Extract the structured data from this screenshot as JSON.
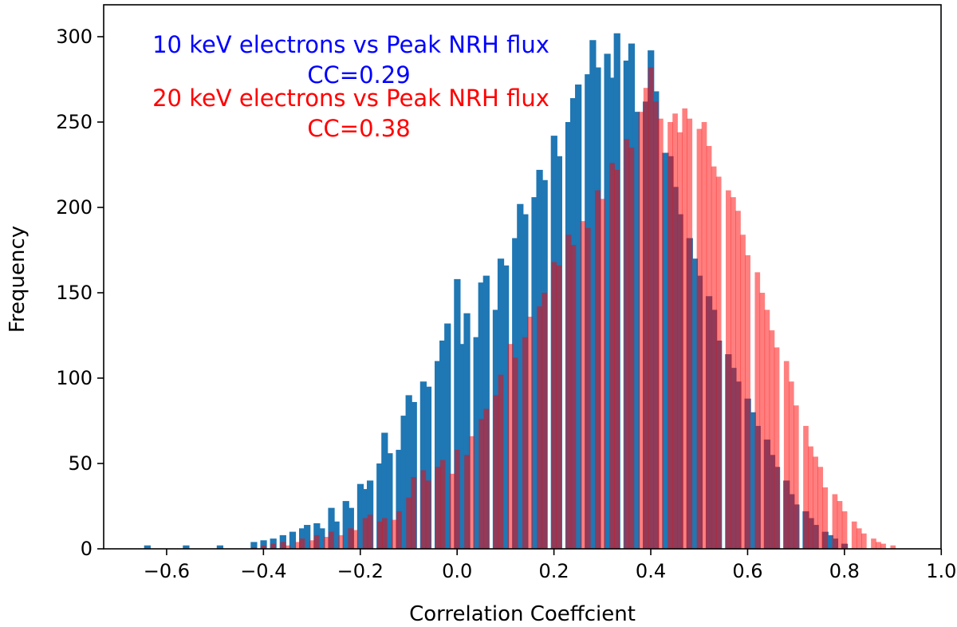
{
  "chart_data": {
    "type": "bar",
    "title": "",
    "xlabel": "Correlation Coeffcient",
    "ylabel": "Frequency",
    "xlim": [
      -0.73,
      1.0
    ],
    "ylim": [
      0,
      320
    ],
    "x_ticks": [
      {
        "value": -0.6,
        "label": "−0.6"
      },
      {
        "value": -0.4,
        "label": "−0.4"
      },
      {
        "value": -0.2,
        "label": "−0.2"
      },
      {
        "value": 0.0,
        "label": "0.0"
      },
      {
        "value": 0.2,
        "label": "0.2"
      },
      {
        "value": 0.4,
        "label": "0.4"
      },
      {
        "value": 0.6,
        "label": "0.6"
      },
      {
        "value": 0.8,
        "label": "0.8"
      },
      {
        "value": 1.0,
        "label": "1.0"
      }
    ],
    "y_ticks": [
      {
        "value": 0,
        "label": "0"
      },
      {
        "value": 50,
        "label": "50"
      },
      {
        "value": 100,
        "label": "100"
      },
      {
        "value": 150,
        "label": "150"
      },
      {
        "value": 200,
        "label": "200"
      },
      {
        "value": 250,
        "label": "250"
      },
      {
        "value": 300,
        "label": "300"
      }
    ],
    "grid": false,
    "series": [
      {
        "id": "blue",
        "color": "#1f77b4",
        "opacity": 1,
        "bin_width": 0.0129,
        "bins": [
          [
            -0.64,
            2
          ],
          [
            -0.56,
            2
          ],
          [
            -0.49,
            2
          ],
          [
            -0.42,
            4
          ],
          [
            -0.4,
            5
          ],
          [
            -0.38,
            6
          ],
          [
            -0.36,
            8
          ],
          [
            -0.34,
            10
          ],
          [
            -0.32,
            12
          ],
          [
            -0.31,
            14
          ],
          [
            -0.29,
            15
          ],
          [
            -0.28,
            12
          ],
          [
            -0.26,
            24
          ],
          [
            -0.25,
            16
          ],
          [
            -0.23,
            28
          ],
          [
            -0.22,
            24
          ],
          [
            -0.2,
            38
          ],
          [
            -0.19,
            35
          ],
          [
            -0.18,
            40
          ],
          [
            -0.16,
            50
          ],
          [
            -0.15,
            68
          ],
          [
            -0.14,
            56
          ],
          [
            -0.12,
            58
          ],
          [
            -0.11,
            78
          ],
          [
            -0.1,
            90
          ],
          [
            -0.09,
            86
          ],
          [
            -0.07,
            98
          ],
          [
            -0.06,
            95
          ],
          [
            -0.04,
            110
          ],
          [
            -0.03,
            122
          ],
          [
            -0.02,
            132
          ],
          [
            0.0,
            158
          ],
          [
            0.01,
            120
          ],
          [
            0.02,
            138
          ],
          [
            0.04,
            124
          ],
          [
            0.05,
            156
          ],
          [
            0.06,
            160
          ],
          [
            0.08,
            140
          ],
          [
            0.09,
            170
          ],
          [
            0.1,
            166
          ],
          [
            0.12,
            182
          ],
          [
            0.13,
            202
          ],
          [
            0.14,
            196
          ],
          [
            0.16,
            206
          ],
          [
            0.17,
            222
          ],
          [
            0.18,
            216
          ],
          [
            0.2,
            242
          ],
          [
            0.21,
            230
          ],
          [
            0.23,
            250
          ],
          [
            0.24,
            264
          ],
          [
            0.25,
            272
          ],
          [
            0.27,
            278
          ],
          [
            0.28,
            298
          ],
          [
            0.29,
            282
          ],
          [
            0.31,
            290
          ],
          [
            0.32,
            276
          ],
          [
            0.33,
            302
          ],
          [
            0.35,
            286
          ],
          [
            0.36,
            296
          ],
          [
            0.37,
            256
          ],
          [
            0.39,
            262
          ],
          [
            0.4,
            292
          ],
          [
            0.41,
            268
          ],
          [
            0.43,
            232
          ],
          [
            0.44,
            230
          ],
          [
            0.45,
            212
          ],
          [
            0.46,
            196
          ],
          [
            0.48,
            182
          ],
          [
            0.49,
            170
          ],
          [
            0.5,
            160
          ],
          [
            0.52,
            148
          ],
          [
            0.53,
            140
          ],
          [
            0.54,
            122
          ],
          [
            0.56,
            114
          ],
          [
            0.57,
            106
          ],
          [
            0.58,
            98
          ],
          [
            0.6,
            88
          ],
          [
            0.61,
            80
          ],
          [
            0.62,
            72
          ],
          [
            0.64,
            64
          ],
          [
            0.65,
            55
          ],
          [
            0.66,
            48
          ],
          [
            0.68,
            40
          ],
          [
            0.69,
            32
          ],
          [
            0.7,
            26
          ],
          [
            0.72,
            22
          ],
          [
            0.73,
            18
          ],
          [
            0.74,
            14
          ],
          [
            0.76,
            10
          ],
          [
            0.77,
            8
          ],
          [
            0.78,
            6
          ],
          [
            0.8,
            3
          ]
        ]
      },
      {
        "id": "red",
        "color": "#ff0000",
        "opacity": 0.5,
        "bin_width": 0.0103,
        "bins": [
          [
            -0.42,
            1
          ],
          [
            -0.4,
            2
          ],
          [
            -0.38,
            3
          ],
          [
            -0.36,
            4
          ],
          [
            -0.35,
            2
          ],
          [
            -0.33,
            4
          ],
          [
            -0.32,
            6
          ],
          [
            -0.3,
            5
          ],
          [
            -0.29,
            8
          ],
          [
            -0.27,
            7
          ],
          [
            -0.26,
            10
          ],
          [
            -0.24,
            8
          ],
          [
            -0.22,
            12
          ],
          [
            -0.21,
            11
          ],
          [
            -0.19,
            18
          ],
          [
            -0.18,
            20
          ],
          [
            -0.16,
            16
          ],
          [
            -0.15,
            18
          ],
          [
            -0.13,
            17
          ],
          [
            -0.12,
            22
          ],
          [
            -0.1,
            30
          ],
          [
            -0.09,
            42
          ],
          [
            -0.07,
            46
          ],
          [
            -0.06,
            40
          ],
          [
            -0.04,
            48
          ],
          [
            -0.03,
            52
          ],
          [
            -0.01,
            44
          ],
          [
            0.0,
            58
          ],
          [
            0.02,
            55
          ],
          [
            0.03,
            66
          ],
          [
            0.05,
            76
          ],
          [
            0.06,
            82
          ],
          [
            0.08,
            90
          ],
          [
            0.09,
            102
          ],
          [
            0.11,
            120
          ],
          [
            0.12,
            112
          ],
          [
            0.14,
            124
          ],
          [
            0.15,
            136
          ],
          [
            0.17,
            142
          ],
          [
            0.18,
            150
          ],
          [
            0.2,
            168
          ],
          [
            0.21,
            166
          ],
          [
            0.23,
            184
          ],
          [
            0.24,
            178
          ],
          [
            0.26,
            192
          ],
          [
            0.27,
            188
          ],
          [
            0.29,
            210
          ],
          [
            0.3,
            205
          ],
          [
            0.32,
            226
          ],
          [
            0.33,
            222
          ],
          [
            0.35,
            240
          ],
          [
            0.36,
            235
          ],
          [
            0.38,
            256
          ],
          [
            0.39,
            270
          ],
          [
            0.4,
            282
          ],
          [
            0.41,
            262
          ],
          [
            0.42,
            252
          ],
          [
            0.44,
            250
          ],
          [
            0.45,
            255
          ],
          [
            0.46,
            244
          ],
          [
            0.47,
            258
          ],
          [
            0.48,
            252
          ],
          [
            0.5,
            246
          ],
          [
            0.51,
            250
          ],
          [
            0.52,
            236
          ],
          [
            0.53,
            224
          ],
          [
            0.54,
            218
          ],
          [
            0.56,
            210
          ],
          [
            0.57,
            206
          ],
          [
            0.58,
            198
          ],
          [
            0.59,
            184
          ],
          [
            0.6,
            172
          ],
          [
            0.62,
            162
          ],
          [
            0.63,
            150
          ],
          [
            0.64,
            140
          ],
          [
            0.65,
            128
          ],
          [
            0.66,
            118
          ],
          [
            0.68,
            110
          ],
          [
            0.69,
            98
          ],
          [
            0.7,
            84
          ],
          [
            0.72,
            72
          ],
          [
            0.73,
            60
          ],
          [
            0.74,
            54
          ],
          [
            0.75,
            48
          ],
          [
            0.76,
            36
          ],
          [
            0.78,
            32
          ],
          [
            0.79,
            28
          ],
          [
            0.8,
            22
          ],
          [
            0.82,
            16
          ],
          [
            0.83,
            12
          ],
          [
            0.84,
            9
          ],
          [
            0.86,
            6
          ],
          [
            0.87,
            4
          ],
          [
            0.88,
            3
          ],
          [
            0.9,
            2
          ]
        ]
      }
    ],
    "annotations": [
      {
        "line1": "10 keV electrons vs Peak NRH flux",
        "line2": "CC=0.29",
        "color": "#0000ff"
      },
      {
        "line1": "20 keV electrons vs Peak NRH flux",
        "line2": "CC=0.38",
        "color": "#ff0000"
      }
    ]
  }
}
